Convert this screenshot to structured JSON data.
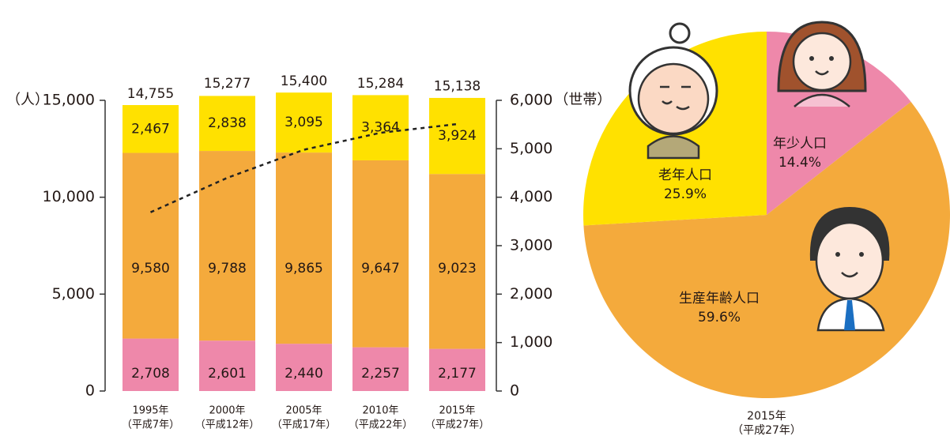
{
  "chart_data": [
    {
      "type": "bar",
      "stacked": true,
      "categories": [
        "1995年",
        "2000年",
        "2005年",
        "2010年",
        "2015年"
      ],
      "category_sublabels": [
        "（平成7年）",
        "（平成12年）",
        "（平成17年）",
        "（平成22年）",
        "（平成27年）"
      ],
      "ylabel": "（人）",
      "y2label": "（世帯）",
      "ylim": [
        0,
        15000
      ],
      "yticks": [
        0,
        {
          "value": 5000,
          "label": "5,000"
        },
        {
          "value": 10000,
          "label": "10,000"
        },
        {
          "value": 15000,
          "label": "15,000"
        }
      ],
      "y2lim": [
        0,
        6000
      ],
      "y2ticks": [
        0,
        {
          "value": 1000,
          "label": "1,000"
        },
        {
          "value": 2000,
          "label": "2,000"
        },
        {
          "value": 3000,
          "label": "3,000"
        },
        {
          "value": 4000,
          "label": "4,000"
        },
        {
          "value": 5000,
          "label": "5,000"
        },
        {
          "value": 6000,
          "label": "6,000"
        }
      ],
      "series": [
        {
          "color": "#ee88aa",
          "values": [
            2708,
            2601,
            2440,
            2257,
            2177
          ],
          "value_labels": [
            "2,708",
            "2,601",
            "2,440",
            "2,257",
            "2,177"
          ]
        },
        {
          "color": "#f4aa3c",
          "values": [
            9580,
            9788,
            9865,
            9647,
            9023
          ],
          "value_labels": [
            "9,580",
            "9,788",
            "9,865",
            "9,647",
            "9,023"
          ]
        },
        {
          "color": "#ffe100",
          "values": [
            2467,
            2838,
            3095,
            3364,
            3924
          ],
          "value_labels": [
            "2,467",
            "2,838",
            "3,095",
            "3,364",
            "3,924"
          ]
        },
        {
          "type": "line",
          "axis": "y2",
          "color": "#222222",
          "dashed": true,
          "values": [
            3690,
            4400,
            4980,
            5330,
            5510
          ]
        }
      ],
      "totals": [
        14755,
        15277,
        15400,
        15284,
        15138
      ],
      "total_labels": [
        "14,755",
        "15,277",
        "15,400",
        "15,284",
        "15,138"
      ]
    },
    {
      "type": "pie",
      "categories": [
        "年少人口",
        "生産年齢人口",
        "老年人口"
      ],
      "values": [
        14.4,
        59.6,
        25.9
      ],
      "value_labels": [
        "14.4%",
        "59.6%",
        "25.9%"
      ],
      "colors": [
        "#ee88aa",
        "#f4aa3c",
        "#ffe100"
      ],
      "caption": "2015年",
      "caption_sub": "（平成27年）"
    }
  ]
}
